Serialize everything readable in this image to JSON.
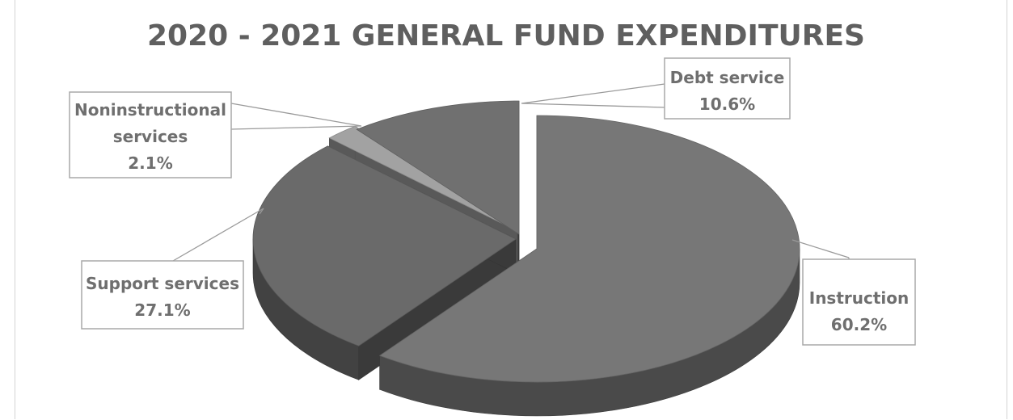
{
  "chart_data": {
    "type": "pie",
    "title": "2020 - 2021 GENERAL FUND EXPENDITURES",
    "slices": [
      {
        "label": "Instruction",
        "value": 60.2,
        "value_label": "60.2%",
        "color": "#777777"
      },
      {
        "label": "Support services",
        "value": 27.1,
        "value_label": "27.1%",
        "color": "#6a6a6a"
      },
      {
        "label": "Noninstructional services",
        "label_lines": [
          "Noninstructional",
          "services"
        ],
        "value": 2.1,
        "value_label": "2.1%",
        "color": "#a2a2a2"
      },
      {
        "label": "Debt service",
        "value": 10.6,
        "value_label": "10.6%",
        "color": "#707070"
      }
    ],
    "style": "3d-exploded",
    "legend": "none"
  }
}
